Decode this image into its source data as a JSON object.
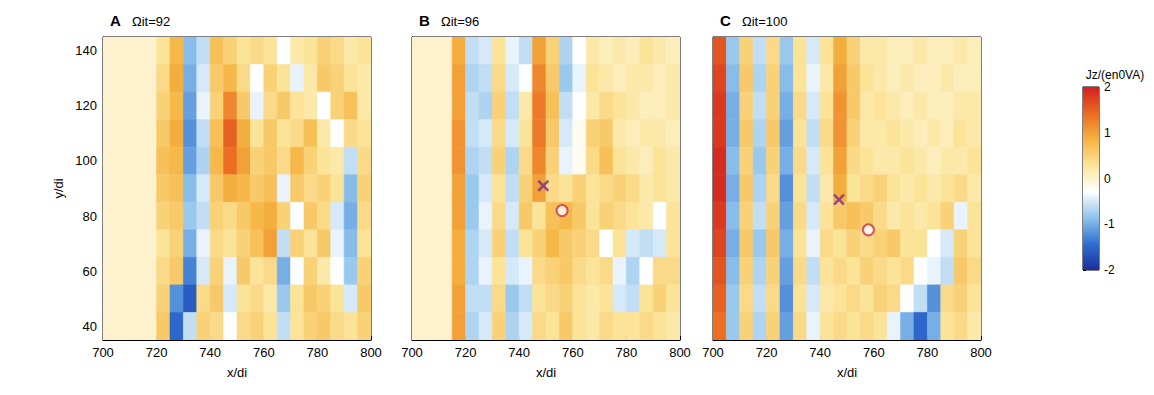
{
  "chart_data": [
    {
      "type": "heatmap",
      "panel": "A",
      "title": "Ωit=92",
      "xlabel": "x/di",
      "ylabel": "y/di",
      "xlim": [
        700,
        800
      ],
      "xticks": [
        700,
        720,
        740,
        760,
        780,
        800
      ],
      "ylim": [
        35,
        145
      ],
      "yticks": [
        40,
        60,
        80,
        100,
        120,
        140
      ],
      "x": [
        702.5,
        707.5,
        712.5,
        717.5,
        722.5,
        727.5,
        732.5,
        737.5,
        742.5,
        747.5,
        752.5,
        757.5,
        762.5,
        767.5,
        772.5,
        777.5,
        782.5,
        787.5,
        792.5,
        797.5
      ],
      "y": [
        140,
        130,
        120,
        110,
        100,
        90,
        80,
        70,
        60,
        50,
        40
      ],
      "values": [
        [
          0,
          0,
          0,
          0,
          0.3,
          0.8,
          -0.9,
          -0.6,
          0.7,
          0.5,
          0.3,
          0.4,
          0.3,
          -0.3,
          0.2,
          0.3,
          0.5,
          0.4,
          0.2,
          0.3
        ],
        [
          0,
          0,
          0,
          0,
          0.4,
          0.9,
          -1.0,
          -0.5,
          0.6,
          0.8,
          0.4,
          -0.3,
          0.5,
          0.3,
          -0.4,
          0.2,
          0.6,
          0.5,
          0.3,
          0.2
        ],
        [
          0,
          0,
          0,
          0,
          0.5,
          0.8,
          -1.1,
          -0.4,
          0.5,
          1.2,
          0.6,
          -0.4,
          0.4,
          0.6,
          0.3,
          0.2,
          -0.3,
          0.5,
          0.7,
          0.2
        ],
        [
          0,
          0,
          0,
          0,
          0.6,
          0.9,
          -1.2,
          -0.6,
          0.7,
          1.5,
          0.9,
          0.3,
          0.6,
          0.3,
          0.4,
          0.7,
          0.2,
          -0.3,
          0.4,
          0.3
        ],
        [
          0,
          0,
          0,
          0,
          0.7,
          0.8,
          -1.1,
          -0.7,
          0.8,
          1.4,
          1.0,
          0.5,
          0.6,
          0.4,
          0.8,
          0.5,
          0.3,
          0.2,
          -0.6,
          0.4
        ],
        [
          0,
          0,
          0,
          0,
          0.6,
          0.7,
          -0.9,
          -0.5,
          0.6,
          0.9,
          0.8,
          0.6,
          0.7,
          -0.4,
          0.6,
          0.4,
          0.5,
          0.3,
          -0.9,
          0.5
        ],
        [
          0,
          0,
          0,
          0,
          0.5,
          0.6,
          -0.8,
          -0.6,
          0.5,
          0.4,
          0.6,
          0.8,
          0.9,
          0.5,
          -0.3,
          0.6,
          0.4,
          -0.5,
          -1.0,
          0.4
        ],
        [
          0,
          0,
          0,
          0,
          0.3,
          0.5,
          -1.0,
          -0.4,
          0.4,
          0.3,
          0.5,
          0.7,
          1.0,
          -0.6,
          0.5,
          0.3,
          0.6,
          -0.4,
          -0.9,
          0.3
        ],
        [
          0,
          0,
          0,
          0,
          0.4,
          0.6,
          -1.3,
          -0.5,
          0.5,
          -0.4,
          0.6,
          0.3,
          0.4,
          -1.0,
          -0.3,
          0.5,
          0.2,
          -0.3,
          -0.8,
          0.5
        ],
        [
          0,
          0,
          0,
          0,
          0.5,
          -1.2,
          -1.6,
          0.4,
          0.6,
          -0.5,
          0.3,
          0.4,
          0.2,
          -0.8,
          0.3,
          0.6,
          0.5,
          0.3,
          -0.5,
          0.6
        ],
        [
          0,
          0,
          0,
          0,
          0.6,
          -1.5,
          -0.6,
          0.5,
          0.4,
          -0.3,
          0.4,
          0.5,
          0.3,
          -0.6,
          0.3,
          0.5,
          0.6,
          0.4,
          0.3,
          0.5
        ]
      ]
    },
    {
      "type": "heatmap",
      "panel": "B",
      "title": "Ωit=96",
      "xlabel": "x/di",
      "tick_labels": "x",
      "xlim": [
        700,
        800
      ],
      "xticks": [
        700,
        720,
        740,
        760,
        780,
        800
      ],
      "ylim": [
        35,
        145
      ],
      "yticks": [
        40,
        60,
        80,
        100,
        120,
        140
      ],
      "x": [
        702.5,
        707.5,
        712.5,
        717.5,
        722.5,
        727.5,
        732.5,
        737.5,
        742.5,
        747.5,
        752.5,
        757.5,
        762.5,
        767.5,
        772.5,
        777.5,
        782.5,
        787.5,
        792.5,
        797.5
      ],
      "y": [
        140,
        130,
        120,
        110,
        100,
        90,
        80,
        70,
        60,
        50,
        40
      ],
      "values": [
        [
          0,
          0,
          0,
          0.9,
          -0.6,
          -0.5,
          0.3,
          -0.4,
          -0.6,
          1.0,
          0.5,
          -0.7,
          -0.3,
          0.2,
          0.1,
          0.2,
          0.1,
          0.3,
          0.2,
          0.1
        ],
        [
          0,
          0,
          0,
          1.0,
          -0.7,
          -0.6,
          0.4,
          -0.5,
          -0.3,
          1.2,
          0.6,
          -0.8,
          -0.4,
          0.3,
          0.2,
          0.1,
          0.2,
          0.2,
          0.1,
          0.2
        ],
        [
          0,
          0,
          0,
          1.0,
          -0.6,
          -0.7,
          0.5,
          -0.6,
          0.2,
          1.3,
          0.7,
          -0.6,
          -0.3,
          0.2,
          0.4,
          0.3,
          0.2,
          0.1,
          0.1,
          0.2
        ],
        [
          0,
          0,
          0,
          1.1,
          -0.6,
          -0.5,
          0.4,
          -0.5,
          0.3,
          1.3,
          0.6,
          -0.5,
          -0.2,
          0.5,
          0.6,
          0.2,
          0.1,
          0.2,
          0.2,
          0.1
        ],
        [
          0,
          0,
          0,
          1.1,
          -0.7,
          -0.6,
          0.5,
          -0.7,
          0.4,
          1.2,
          0.5,
          -0.4,
          -0.2,
          0.4,
          0.7,
          0.3,
          0.2,
          0.1,
          0.3,
          0.2
        ],
        [
          0,
          0,
          0,
          1.0,
          -0.8,
          -0.5,
          0.3,
          -0.6,
          0.5,
          1.0,
          0.4,
          0.3,
          0.5,
          0.3,
          0.4,
          0.5,
          0.4,
          0.2,
          0.3,
          0.2
        ],
        [
          0,
          0,
          0,
          1.0,
          -0.8,
          -0.4,
          0.4,
          -0.5,
          0.6,
          0.3,
          0.7,
          0.8,
          0.6,
          0.3,
          0.5,
          0.4,
          0.3,
          0.2,
          -0.3,
          0.3
        ],
        [
          0,
          0,
          0,
          0.9,
          -0.7,
          -0.5,
          0.5,
          -0.6,
          0.3,
          0.5,
          0.8,
          0.6,
          0.5,
          0.4,
          -0.3,
          0.3,
          -0.5,
          -0.6,
          -0.5,
          0.3
        ],
        [
          0,
          0,
          0,
          0.9,
          -0.7,
          -0.4,
          0.3,
          -0.5,
          -0.4,
          0.4,
          0.5,
          0.6,
          0.4,
          0.3,
          0.4,
          -0.4,
          -0.7,
          -0.3,
          0.4,
          0.4
        ],
        [
          0,
          0,
          0,
          1.0,
          -0.6,
          -0.6,
          0.4,
          -0.8,
          -0.6,
          0.3,
          0.4,
          0.5,
          0.3,
          0.2,
          0.3,
          -0.5,
          -0.6,
          0.3,
          0.5,
          0.3
        ],
        [
          0,
          0,
          0,
          1.0,
          -0.7,
          -0.5,
          0.5,
          -0.7,
          -0.5,
          0.4,
          0.3,
          0.6,
          0.3,
          0.2,
          0.4,
          0.3,
          0.3,
          0.4,
          0.3,
          0.2
        ]
      ],
      "markers": [
        {
          "x": 749,
          "y": 91,
          "marker": "x",
          "color": "#7b2d8e"
        },
        {
          "x": 756,
          "y": 82,
          "marker": "o",
          "color": "#c8324b"
        }
      ]
    },
    {
      "type": "heatmap",
      "panel": "C",
      "title": "Ωit=100",
      "xlabel": "x/di",
      "tick_labels": "x",
      "xlim": [
        700,
        800
      ],
      "xticks": [
        700,
        720,
        740,
        760,
        780,
        800
      ],
      "ylim": [
        35,
        145
      ],
      "yticks": [
        40,
        60,
        80,
        100,
        120,
        140
      ],
      "x": [
        702.5,
        707.5,
        712.5,
        717.5,
        722.5,
        727.5,
        732.5,
        737.5,
        742.5,
        747.5,
        752.5,
        757.5,
        762.5,
        767.5,
        772.5,
        777.5,
        782.5,
        787.5,
        792.5,
        797.5
      ],
      "y": [
        140,
        130,
        120,
        110,
        100,
        90,
        80,
        70,
        60,
        50,
        40
      ],
      "values": [
        [
          1.6,
          -0.8,
          0.5,
          -0.6,
          0.4,
          -0.8,
          0.3,
          -0.5,
          0.3,
          0.9,
          0.5,
          0.2,
          0.2,
          0.1,
          0.1,
          0.2,
          0.1,
          0.1,
          0.2,
          0.1
        ],
        [
          1.7,
          -0.9,
          0.6,
          -0.7,
          0.5,
          -0.9,
          0.3,
          -0.4,
          0.2,
          1.0,
          0.6,
          0.3,
          0.2,
          0.1,
          0.2,
          0.1,
          0.1,
          0.2,
          0.1,
          0.1
        ],
        [
          1.8,
          -1.0,
          0.5,
          -0.6,
          0.5,
          -1.0,
          0.4,
          -0.5,
          0.3,
          1.1,
          0.6,
          0.2,
          0.3,
          0.2,
          0.1,
          0.2,
          0.1,
          0.1,
          0.2,
          0.2
        ],
        [
          1.8,
          -1.0,
          0.6,
          -0.7,
          0.6,
          -1.1,
          0.3,
          -0.6,
          0.4,
          1.1,
          0.5,
          0.2,
          0.2,
          0.3,
          0.2,
          0.1,
          0.2,
          0.1,
          0.3,
          0.2
        ],
        [
          1.9,
          -0.9,
          0.5,
          -0.8,
          0.5,
          -1.0,
          0.4,
          -0.5,
          0.3,
          1.0,
          0.4,
          0.3,
          0.2,
          0.2,
          0.3,
          0.2,
          0.1,
          0.2,
          0.2,
          0.3
        ],
        [
          1.9,
          -1.0,
          0.6,
          -0.7,
          0.4,
          -1.2,
          0.3,
          -0.6,
          0.2,
          0.9,
          0.3,
          0.4,
          0.5,
          0.3,
          0.2,
          0.3,
          0.2,
          0.3,
          0.4,
          0.2
        ],
        [
          1.8,
          -0.9,
          0.5,
          -0.6,
          0.5,
          -1.1,
          0.4,
          -0.5,
          0.3,
          0.6,
          0.7,
          0.6,
          0.4,
          0.2,
          0.3,
          0.2,
          0.3,
          0.5,
          -0.4,
          0.3
        ],
        [
          1.7,
          -1.0,
          0.6,
          -0.8,
          0.6,
          -1.0,
          0.3,
          -0.4,
          0.4,
          0.3,
          0.5,
          0.4,
          0.5,
          0.6,
          0.3,
          0.3,
          -0.3,
          -0.5,
          0.5,
          0.3
        ],
        [
          1.6,
          -0.9,
          0.5,
          -0.7,
          0.5,
          -1.1,
          0.4,
          -0.6,
          0.3,
          0.4,
          0.3,
          0.5,
          0.4,
          0.3,
          0.4,
          -0.3,
          -0.4,
          -0.6,
          0.6,
          0.4
        ],
        [
          1.5,
          -0.8,
          0.4,
          -0.6,
          0.4,
          -1.2,
          0.3,
          -0.5,
          0.2,
          0.3,
          0.4,
          0.3,
          0.5,
          0.4,
          -0.3,
          -0.6,
          -1.2,
          0.4,
          0.5,
          0.3
        ],
        [
          1.4,
          -0.8,
          0.5,
          -0.7,
          0.5,
          -1.1,
          0.4,
          -0.4,
          0.3,
          0.4,
          0.3,
          0.4,
          0.3,
          -0.4,
          -1.0,
          -1.5,
          -1.0,
          0.3,
          0.4,
          0.2
        ]
      ],
      "markers": [
        {
          "x": 747,
          "y": 86,
          "marker": "x",
          "color": "#7b2d8e"
        },
        {
          "x": 758,
          "y": 75,
          "marker": "o",
          "color": "#c8324b"
        }
      ]
    }
  ],
  "colorbar": {
    "label": "Jz/(en0VA)",
    "range": [
      -2,
      2
    ],
    "ticks": [
      2,
      1,
      0,
      -1,
      -2
    ],
    "colors": [
      "#1c2f9a",
      "#2f6fd0",
      "#8fc3ec",
      "#ffffff",
      "#fbe49a",
      "#f5b340",
      "#ea6a22",
      "#d11f1f"
    ]
  }
}
